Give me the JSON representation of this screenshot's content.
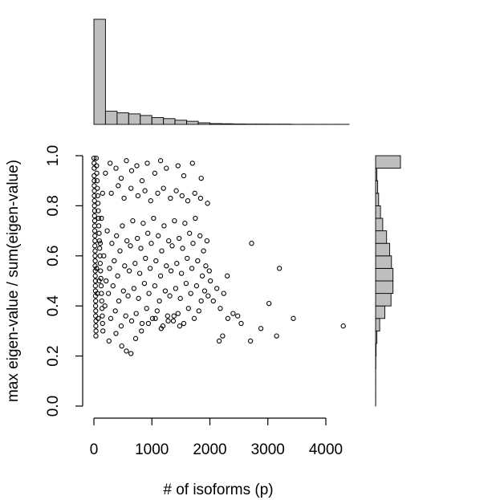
{
  "chart_data": [
    {
      "type": "scatter",
      "panel": "main",
      "xlabel": "# of isoforms (p)",
      "ylabel": "max eigen-value / sum(eigen-value)",
      "xlim": [
        0,
        4400
      ],
      "ylim": [
        0,
        1
      ],
      "x_ticks": [
        "0",
        "1000",
        "2000",
        "3000",
        "4000"
      ],
      "y_ticks": [
        "0.0",
        "0.2",
        "0.4",
        "0.6",
        "0.8",
        "1.0"
      ],
      "grid": false,
      "point_style": "open-circle",
      "point_color": "#000000",
      "points": [
        [
          2,
          0.99
        ],
        [
          3,
          0.97
        ],
        [
          5,
          0.95
        ],
        [
          4,
          0.92
        ],
        [
          6,
          0.9
        ],
        [
          5,
          0.88
        ],
        [
          8,
          0.86
        ],
        [
          7,
          0.84
        ],
        [
          9,
          0.82
        ],
        [
          10,
          0.8
        ],
        [
          12,
          0.78
        ],
        [
          11,
          0.76
        ],
        [
          14,
          0.74
        ],
        [
          13,
          0.72
        ],
        [
          15,
          0.7
        ],
        [
          16,
          0.68
        ],
        [
          18,
          0.66
        ],
        [
          17,
          0.64
        ],
        [
          20,
          0.62
        ],
        [
          19,
          0.6
        ],
        [
          22,
          0.58
        ],
        [
          21,
          0.56
        ],
        [
          24,
          0.54
        ],
        [
          23,
          0.52
        ],
        [
          26,
          0.5
        ],
        [
          25,
          0.48
        ],
        [
          28,
          0.46
        ],
        [
          27,
          0.44
        ],
        [
          30,
          0.42
        ],
        [
          29,
          0.4
        ],
        [
          32,
          0.38
        ],
        [
          31,
          0.36
        ],
        [
          34,
          0.34
        ],
        [
          33,
          0.32
        ],
        [
          36,
          0.3
        ],
        [
          35,
          0.28
        ],
        [
          40,
          0.99
        ],
        [
          45,
          0.96
        ],
        [
          50,
          0.93
        ],
        [
          55,
          0.9
        ],
        [
          60,
          0.87
        ],
        [
          65,
          0.84
        ],
        [
          70,
          0.81
        ],
        [
          75,
          0.78
        ],
        [
          80,
          0.75
        ],
        [
          85,
          0.72
        ],
        [
          90,
          0.69
        ],
        [
          95,
          0.66
        ],
        [
          100,
          0.63
        ],
        [
          105,
          0.6
        ],
        [
          110,
          0.57
        ],
        [
          115,
          0.54
        ],
        [
          120,
          0.51
        ],
        [
          125,
          0.48
        ],
        [
          130,
          0.45
        ],
        [
          135,
          0.42
        ],
        [
          140,
          0.39
        ],
        [
          145,
          0.36
        ],
        [
          150,
          0.33
        ],
        [
          155,
          0.3
        ],
        [
          45,
          0.55
        ],
        [
          60,
          0.45
        ],
        [
          75,
          0.35
        ],
        [
          90,
          0.5
        ],
        [
          110,
          0.65
        ],
        [
          130,
          0.75
        ],
        [
          150,
          0.85
        ],
        [
          170,
          0.6
        ],
        [
          190,
          0.4
        ],
        [
          210,
          0.5
        ],
        [
          230,
          0.7
        ],
        [
          250,
          0.45
        ],
        [
          270,
          0.55
        ],
        [
          290,
          0.35
        ],
        [
          310,
          0.65
        ],
        [
          330,
          0.48
        ],
        [
          350,
          0.58
        ],
        [
          370,
          0.38
        ],
        [
          390,
          0.68
        ],
        [
          410,
          0.52
        ],
        [
          430,
          0.42
        ],
        [
          450,
          0.62
        ],
        [
          470,
          0.32
        ],
        [
          490,
          0.72
        ],
        [
          510,
          0.46
        ],
        [
          530,
          0.56
        ],
        [
          550,
          0.36
        ],
        [
          570,
          0.66
        ],
        [
          590,
          0.44
        ],
        [
          610,
          0.54
        ],
        [
          630,
          0.64
        ],
        [
          650,
          0.34
        ],
        [
          670,
          0.74
        ],
        [
          690,
          0.47
        ],
        [
          710,
          0.57
        ],
        [
          730,
          0.37
        ],
        [
          750,
          0.67
        ],
        [
          770,
          0.43
        ],
        [
          790,
          0.53
        ],
        [
          810,
          0.63
        ],
        [
          830,
          0.33
        ],
        [
          850,
          0.73
        ],
        [
          870,
          0.49
        ],
        [
          890,
          0.59
        ],
        [
          910,
          0.39
        ],
        [
          930,
          0.69
        ],
        [
          950,
          0.45
        ],
        [
          970,
          0.55
        ],
        [
          990,
          0.65
        ],
        [
          1010,
          0.35
        ],
        [
          1030,
          0.75
        ],
        [
          1050,
          0.48
        ],
        [
          1070,
          0.58
        ],
        [
          1090,
          0.38
        ],
        [
          1110,
          0.68
        ],
        [
          1130,
          0.42
        ],
        [
          1150,
          0.52
        ],
        [
          1170,
          0.62
        ],
        [
          1190,
          0.32
        ],
        [
          1210,
          0.72
        ],
        [
          1230,
          0.46
        ],
        [
          1250,
          0.56
        ],
        [
          1270,
          0.36
        ],
        [
          1290,
          0.66
        ],
        [
          1310,
          0.44
        ],
        [
          1330,
          0.54
        ],
        [
          1350,
          0.64
        ],
        [
          1370,
          0.34
        ],
        [
          1390,
          0.74
        ],
        [
          1410,
          0.47
        ],
        [
          1430,
          0.57
        ],
        [
          1450,
          0.37
        ],
        [
          1470,
          0.67
        ],
        [
          1490,
          0.43
        ],
        [
          1510,
          0.53
        ],
        [
          1530,
          0.63
        ],
        [
          1550,
          0.33
        ],
        [
          1570,
          0.73
        ],
        [
          1590,
          0.49
        ],
        [
          1610,
          0.59
        ],
        [
          1630,
          0.39
        ],
        [
          1650,
          0.69
        ],
        [
          1670,
          0.45
        ],
        [
          1690,
          0.55
        ],
        [
          1710,
          0.65
        ],
        [
          1730,
          0.35
        ],
        [
          1750,
          0.75
        ],
        [
          1770,
          0.48
        ],
        [
          1790,
          0.58
        ],
        [
          1810,
          0.38
        ],
        [
          1830,
          0.68
        ],
        [
          1850,
          0.42
        ],
        [
          1870,
          0.52
        ],
        [
          1890,
          0.62
        ],
        [
          1910,
          0.46
        ],
        [
          1930,
          0.56
        ],
        [
          1950,
          0.66
        ],
        [
          1970,
          0.44
        ],
        [
          1990,
          0.54
        ],
        [
          2010,
          0.5
        ],
        [
          200,
          0.93
        ],
        [
          280,
          0.97
        ],
        [
          380,
          0.95
        ],
        [
          470,
          0.91
        ],
        [
          560,
          0.98
        ],
        [
          650,
          0.94
        ],
        [
          740,
          0.96
        ],
        [
          830,
          0.9
        ],
        [
          920,
          0.97
        ],
        [
          1050,
          0.93
        ],
        [
          1150,
          0.98
        ],
        [
          1250,
          0.95
        ],
        [
          1450,
          0.96
        ],
        [
          1550,
          0.92
        ],
        [
          1700,
          0.97
        ],
        [
          1850,
          0.91
        ],
        [
          300,
          0.85
        ],
        [
          420,
          0.88
        ],
        [
          520,
          0.83
        ],
        [
          640,
          0.87
        ],
        [
          760,
          0.84
        ],
        [
          880,
          0.86
        ],
        [
          980,
          0.82
        ],
        [
          1100,
          0.85
        ],
        [
          1200,
          0.87
        ],
        [
          1320,
          0.83
        ],
        [
          1420,
          0.86
        ],
        [
          1520,
          0.84
        ],
        [
          1620,
          0.82
        ],
        [
          1740,
          0.85
        ],
        [
          1840,
          0.83
        ],
        [
          1960,
          0.81
        ],
        [
          260,
          0.26
        ],
        [
          380,
          0.29
        ],
        [
          480,
          0.24
        ],
        [
          560,
          0.22
        ],
        [
          640,
          0.21
        ],
        [
          720,
          0.27
        ],
        [
          820,
          0.3
        ],
        [
          940,
          0.33
        ],
        [
          1060,
          0.35
        ],
        [
          1160,
          0.31
        ],
        [
          1280,
          0.34
        ],
        [
          1380,
          0.36
        ],
        [
          1480,
          0.32
        ],
        [
          2060,
          0.42
        ],
        [
          2120,
          0.47
        ],
        [
          2180,
          0.39
        ],
        [
          2240,
          0.45
        ],
        [
          2300,
          0.52
        ],
        [
          2160,
          0.26
        ],
        [
          2220,
          0.28
        ],
        [
          2310,
          0.35
        ],
        [
          2400,
          0.37
        ],
        [
          2480,
          0.36
        ],
        [
          2540,
          0.33
        ],
        [
          2700,
          0.26
        ],
        [
          2720,
          0.65
        ],
        [
          2880,
          0.31
        ],
        [
          3020,
          0.41
        ],
        [
          3150,
          0.28
        ],
        [
          3200,
          0.55
        ],
        [
          3440,
          0.35
        ],
        [
          4300,
          0.32
        ]
      ]
    },
    {
      "type": "bar",
      "panel": "top-marginal-histogram",
      "orientation": "vertical",
      "bin_edges": [
        0,
        200,
        400,
        600,
        800,
        1000,
        1200,
        1400,
        1600,
        1800,
        2000,
        2200,
        2400,
        2600,
        2800,
        3000,
        3200,
        3400,
        3600,
        3800,
        4000,
        4200,
        4400
      ],
      "counts": [
        1000,
        125,
        110,
        100,
        85,
        65,
        55,
        40,
        30,
        15,
        8,
        6,
        4,
        3,
        3,
        2,
        2,
        1,
        1,
        1,
        1,
        1
      ],
      "fill": "#bebebe",
      "stroke": "#000000"
    },
    {
      "type": "bar",
      "panel": "right-marginal-histogram",
      "orientation": "horizontal",
      "bin_edges": [
        0,
        0.05,
        0.1,
        0.15,
        0.2,
        0.25,
        0.3,
        0.35,
        0.4,
        0.45,
        0.5,
        0.55,
        0.6,
        0.65,
        0.7,
        0.75,
        0.8,
        0.85,
        0.9,
        0.95,
        1.0
      ],
      "counts": [
        0,
        0,
        0,
        1,
        2,
        5,
        16,
        36,
        60,
        68,
        68,
        62,
        55,
        43,
        28,
        19,
        12,
        8,
        5,
        97
      ],
      "fill": "#bebebe",
      "stroke": "#000000"
    }
  ]
}
